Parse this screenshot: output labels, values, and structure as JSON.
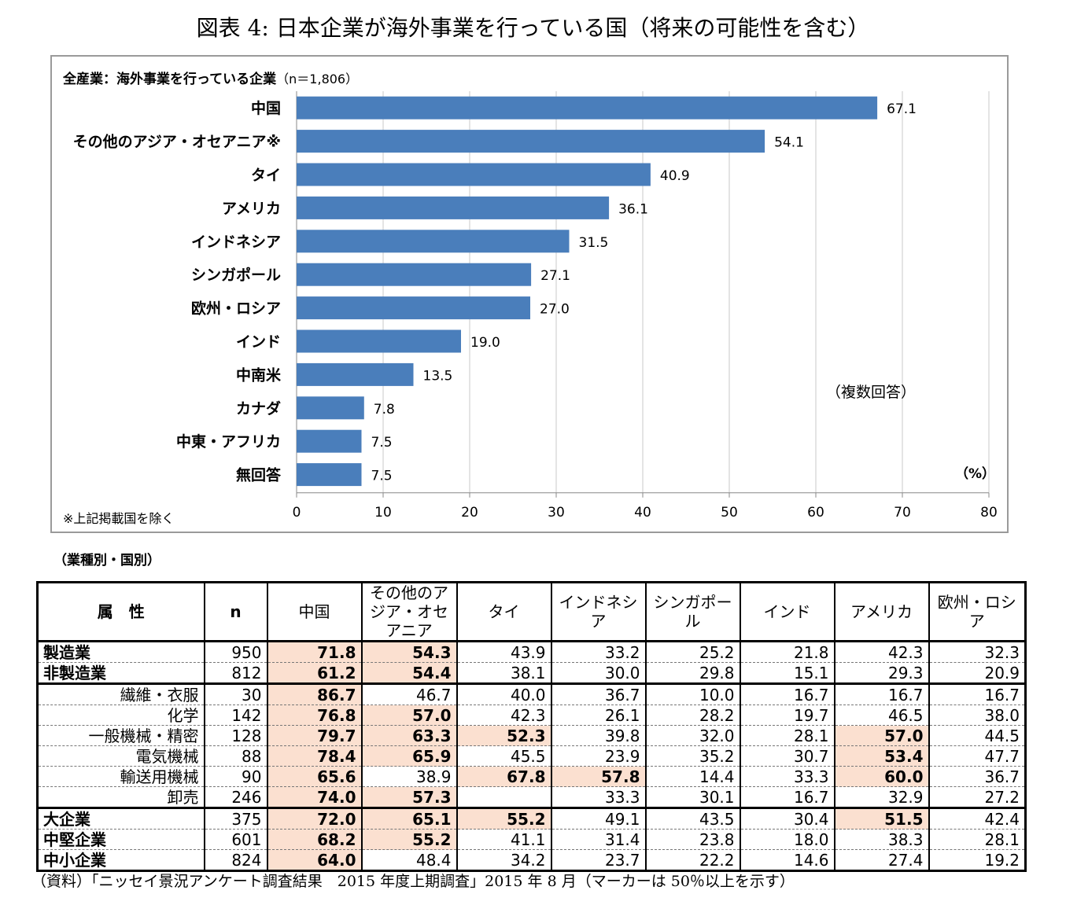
{
  "title": "図表 4:  日本企業が海外事業を行っている国（将来の可能性を含む）",
  "chart_data": {
    "type": "bar",
    "orientation": "horizontal",
    "heading": "全産業：海外事業を行っている企業",
    "sample_size": "（n＝1,806）",
    "categories": [
      "中国",
      "その他のアジア・オセアニア※",
      "タイ",
      "アメリカ",
      "インドネシア",
      "シンガポール",
      "欧州・ロシア",
      "インド",
      "中南米",
      "カナダ",
      "中東・アフリカ",
      "無回答"
    ],
    "values": [
      67.1,
      54.1,
      40.9,
      36.1,
      31.5,
      27.1,
      27.0,
      19.0,
      13.5,
      7.8,
      7.5,
      7.5
    ],
    "value_labels": [
      "67.1",
      "54.1",
      "40.9",
      "36.1",
      "31.5",
      "27.1",
      "27.0",
      "19.0",
      "13.5",
      "7.8",
      "7.5",
      "7.5"
    ],
    "xlim": [
      0,
      80
    ],
    "xticks": [
      "0",
      "10",
      "20",
      "30",
      "40",
      "50",
      "60",
      "70",
      "80"
    ],
    "xtick_values": [
      0,
      10,
      20,
      30,
      40,
      50,
      60,
      70,
      80
    ],
    "unit": "（%）",
    "annotation": "（複数回答）",
    "note": "※上記掲載国を除く",
    "grid": true,
    "bar_color": "#4a7ebb"
  },
  "section_label": "（業種別・国別）",
  "table": {
    "headers": [
      "属　性",
      "n",
      "中国",
      "その他のアジア・オセアニア",
      "タイ",
      "インドネシア",
      "シンガポール",
      "インド",
      "アメリカ",
      "欧州・ロシア"
    ],
    "rows": [
      {
        "attr": "製造業",
        "n": "950",
        "vals": [
          "71.8",
          "54.3",
          "43.9",
          "33.2",
          "25.2",
          "21.8",
          "42.3",
          "32.3"
        ],
        "hl": [
          true,
          true,
          false,
          false,
          false,
          false,
          false,
          false
        ]
      },
      {
        "attr": "非製造業",
        "n": "812",
        "vals": [
          "61.2",
          "54.4",
          "38.1",
          "30.0",
          "29.8",
          "15.1",
          "29.3",
          "20.9"
        ],
        "hl": [
          true,
          true,
          false,
          false,
          false,
          false,
          false,
          false
        ]
      },
      {
        "attr": "繊維・衣服",
        "n": "30",
        "vals": [
          "86.7",
          "46.7",
          "40.0",
          "36.7",
          "10.0",
          "16.7",
          "16.7",
          "16.7"
        ],
        "hl": [
          true,
          false,
          false,
          false,
          false,
          false,
          false,
          false
        ]
      },
      {
        "attr": "化学",
        "n": "142",
        "vals": [
          "76.8",
          "57.0",
          "42.3",
          "26.1",
          "28.2",
          "19.7",
          "46.5",
          "38.0"
        ],
        "hl": [
          true,
          true,
          false,
          false,
          false,
          false,
          false,
          false
        ]
      },
      {
        "attr": "一般機械・精密",
        "n": "128",
        "vals": [
          "79.7",
          "63.3",
          "52.3",
          "39.8",
          "32.0",
          "28.1",
          "57.0",
          "44.5"
        ],
        "hl": [
          true,
          true,
          true,
          false,
          false,
          false,
          true,
          false
        ]
      },
      {
        "attr": "電気機械",
        "n": "88",
        "vals": [
          "78.4",
          "65.9",
          "45.5",
          "23.9",
          "35.2",
          "30.7",
          "53.4",
          "47.7"
        ],
        "hl": [
          true,
          true,
          false,
          false,
          false,
          false,
          true,
          false
        ]
      },
      {
        "attr": "輸送用機械",
        "n": "90",
        "vals": [
          "65.6",
          "38.9",
          "67.8",
          "57.8",
          "14.4",
          "33.3",
          "60.0",
          "36.7"
        ],
        "hl": [
          true,
          false,
          true,
          true,
          false,
          false,
          true,
          false
        ]
      },
      {
        "attr": "卸売",
        "n": "246",
        "vals": [
          "74.0",
          "57.3",
          "",
          "33.3",
          "30.1",
          "16.7",
          "32.9",
          "27.2"
        ],
        "hl": [
          true,
          true,
          false,
          false,
          false,
          false,
          false,
          false
        ]
      },
      {
        "attr": "大企業",
        "n": "375",
        "vals": [
          "72.0",
          "65.1",
          "55.2",
          "49.1",
          "43.5",
          "30.4",
          "51.5",
          "42.4"
        ],
        "hl": [
          true,
          true,
          true,
          false,
          false,
          false,
          true,
          false
        ]
      },
      {
        "attr": "中堅企業",
        "n": "601",
        "vals": [
          "68.2",
          "55.2",
          "41.1",
          "31.4",
          "23.8",
          "18.0",
          "38.3",
          "28.1"
        ],
        "hl": [
          true,
          true,
          false,
          false,
          false,
          false,
          false,
          false
        ]
      },
      {
        "attr": "中小企業",
        "n": "824",
        "vals": [
          "64.0",
          "48.4",
          "34.2",
          "23.7",
          "22.2",
          "14.6",
          "27.4",
          "19.2"
        ],
        "hl": [
          true,
          false,
          false,
          false,
          false,
          false,
          false,
          false
        ]
      }
    ]
  },
  "source": "（資料）「ニッセイ景況アンケート調査結果　2015 年度上期調査」2015 年 8 月（マーカーは 50％以上を示す）"
}
